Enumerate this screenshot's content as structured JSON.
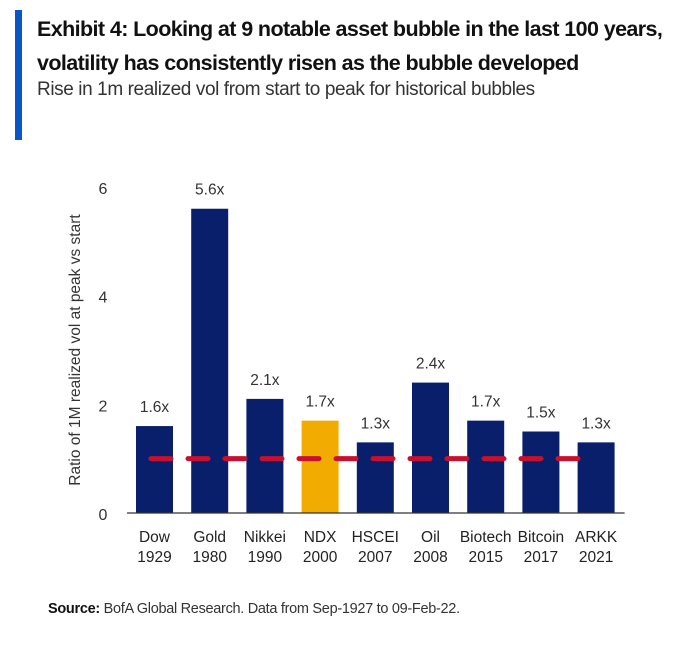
{
  "header": {
    "title": "Exhibit 4: Looking at 9 notable asset bubble in the last 100 years, volatility has consistently risen as the bubble developed",
    "subtitle": "Rise in 1m realized vol from start to peak for historical bubbles",
    "accent_color": "#0a56c8"
  },
  "footer": {
    "source_label": "Source:",
    "source_text": "BofA Global Research. Data from Sep-1927 to 09-Feb-22."
  },
  "chart_data": {
    "type": "bar",
    "title": "Rise in 1m realized vol from start to peak for historical bubbles",
    "xlabel": "",
    "ylabel": "Ratio of 1M realized vol at peak vs start",
    "ylim": [
      0,
      6
    ],
    "yticks": [
      0,
      2,
      4,
      6
    ],
    "grid": false,
    "categories": [
      {
        "name": "Dow",
        "year": "1929"
      },
      {
        "name": "Gold",
        "year": "1980"
      },
      {
        "name": "Nikkei",
        "year": "1990"
      },
      {
        "name": "NDX",
        "year": "2000"
      },
      {
        "name": "HSCEI",
        "year": "2007"
      },
      {
        "name": "Oil",
        "year": "2008"
      },
      {
        "name": "Biotech",
        "year": "2015"
      },
      {
        "name": "Bitcoin",
        "year": "2017"
      },
      {
        "name": "ARKK",
        "year": "2021"
      }
    ],
    "values": [
      1.6,
      5.6,
      2.1,
      1.7,
      1.3,
      2.4,
      1.7,
      1.5,
      1.3
    ],
    "data_labels": [
      "1.6x",
      "5.6x",
      "2.1x",
      "1.7x",
      "1.3x",
      "2.4x",
      "1.7x",
      "1.5x",
      "1.3x"
    ],
    "highlight_index": 3,
    "colors": {
      "bar": "#0a1f6b",
      "highlight": "#f2ab00",
      "reference_line": "#c8102e"
    },
    "reference_line": {
      "value": 1,
      "style": "dashed"
    }
  }
}
